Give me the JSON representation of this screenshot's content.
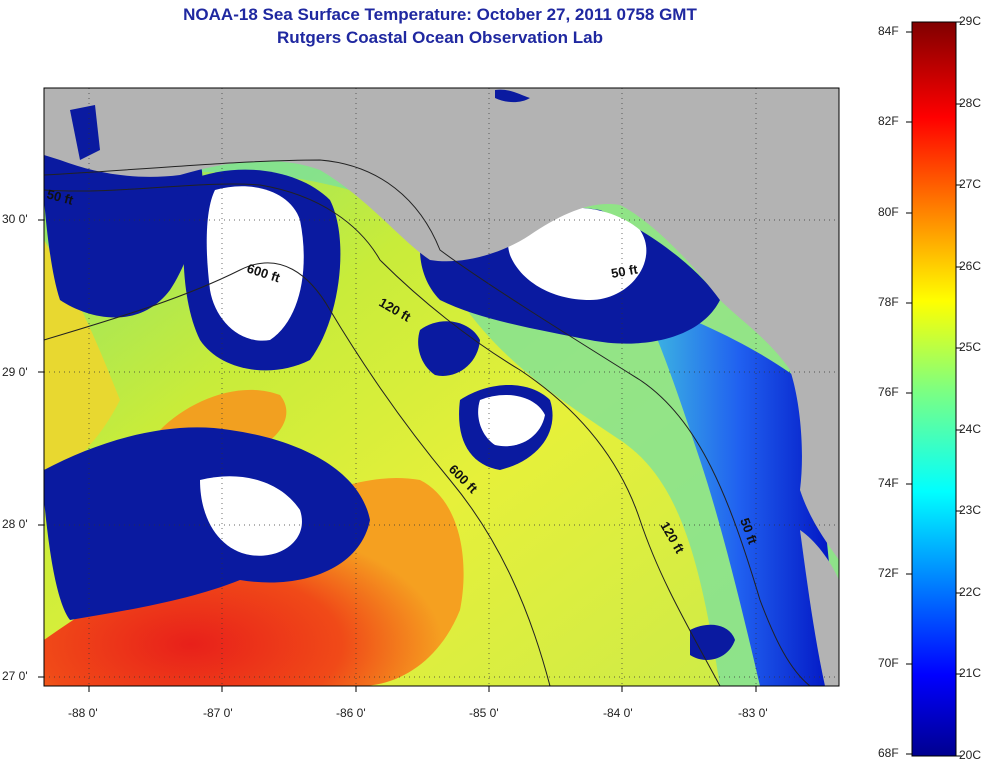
{
  "title": {
    "line1": "NOAA-18 Sea Surface Temperature:  October 27, 2011 0758 GMT",
    "line2": "Rutgers Coastal Ocean Observation Lab"
  },
  "axes": {
    "lon_labels": [
      "-88 0'",
      "-87 0'",
      "-86 0'",
      "-85 0'",
      "-84 0'",
      "-83 0'"
    ],
    "lat_labels": [
      "30 0'",
      "29 0'",
      "28 0'",
      "27 0'"
    ]
  },
  "isobaths": {
    "labels": [
      "50 ft",
      "600 ft",
      "120 ft",
      "600 ft",
      "120 ft",
      "50 ft",
      "50 ft"
    ]
  },
  "colorbar": {
    "fahrenheit_labels": [
      "84F",
      "82F",
      "80F",
      "78F",
      "76F",
      "74F",
      "72F",
      "70F",
      "68F"
    ],
    "celsius_labels": [
      "29C",
      "28C",
      "27C",
      "26C",
      "25C",
      "24C",
      "23C",
      "22C",
      "21C",
      "20C"
    ],
    "range_c": [
      20,
      29
    ],
    "range_f": [
      68,
      84
    ]
  },
  "colors": {
    "land": "#b3b3b3",
    "cloud": "#ffffff",
    "title": "#1f28a0",
    "contour": "#222222"
  }
}
